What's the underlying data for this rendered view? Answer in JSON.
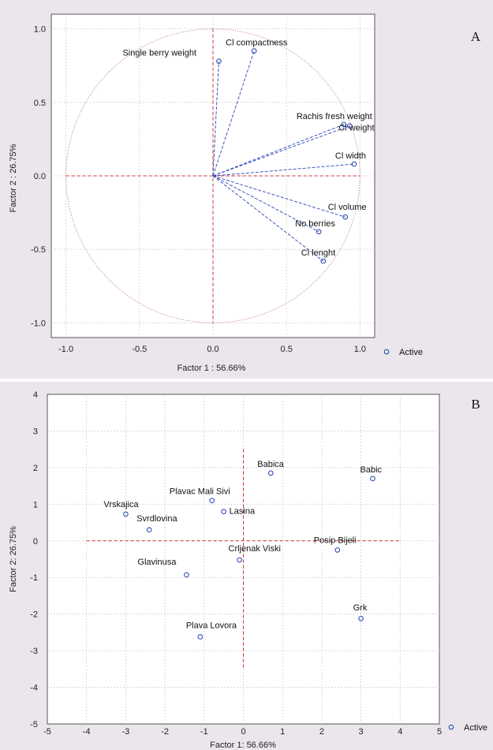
{
  "chart_data": [
    {
      "type": "scatter",
      "panel_label": "A",
      "xlabel": "Factor 1 : 56.66%",
      "ylabel": "Factor 2 : 26.75%",
      "xlim": [
        -1.1,
        1.1
      ],
      "ylim": [
        -1.1,
        1.1
      ],
      "xticks": [
        -1.0,
        -0.5,
        0.0,
        0.5,
        1.0
      ],
      "yticks": [
        -1.0,
        -0.5,
        0.0,
        0.5,
        1.0
      ],
      "xtick_labels": [
        "-1.0",
        "-0.5",
        "0.0",
        "0.5",
        "1.0"
      ],
      "ytick_labels": [
        "-1.0",
        "-0.5",
        "0.0",
        "0.5",
        "1.0"
      ],
      "grid": true,
      "unit_circle": true,
      "legend": {
        "label": "Active",
        "placement": "bottom-right"
      },
      "points": [
        {
          "label": "Cl compactness",
          "x": 0.28,
          "y": 0.85
        },
        {
          "label": "Single berry weight",
          "x": 0.04,
          "y": 0.78
        },
        {
          "label": "Rachis fresh weight",
          "x": 0.89,
          "y": 0.35
        },
        {
          "label": "Cl weight",
          "x": 0.93,
          "y": 0.34
        },
        {
          "label": "Cl width",
          "x": 0.96,
          "y": 0.08
        },
        {
          "label": "Cl volume",
          "x": 0.9,
          "y": -0.28
        },
        {
          "label": "No berries",
          "x": 0.72,
          "y": -0.38
        },
        {
          "label": "Cl lenght",
          "x": 0.75,
          "y": -0.58
        }
      ]
    },
    {
      "type": "scatter",
      "panel_label": "B",
      "xlabel": "Factor 1: 56.66%",
      "ylabel": "Factor 2: 26.75%",
      "xlim": [
        -5,
        5
      ],
      "ylim": [
        -5,
        4
      ],
      "xticks": [
        -5,
        -4,
        -3,
        -2,
        -1,
        0,
        1,
        2,
        3,
        4,
        5
      ],
      "yticks": [
        -5,
        -4,
        -3,
        -2,
        -1,
        0,
        1,
        2,
        3,
        4
      ],
      "xtick_labels": [
        "-5",
        "-4",
        "-3",
        "-2",
        "-1",
        "0",
        "1",
        "2",
        "3",
        "4",
        "5"
      ],
      "ytick_labels": [
        "-5",
        "-4",
        "-3",
        "-2",
        "-1",
        "0",
        "1",
        "2",
        "3",
        "4"
      ],
      "grid": true,
      "legend": {
        "label": "Active",
        "placement": "bottom-right"
      },
      "points": [
        {
          "label": "Babica",
          "x": 0.7,
          "y": 1.85
        },
        {
          "label": "Babic",
          "x": 3.3,
          "y": 1.7
        },
        {
          "label": "Plavac Mali Sivi",
          "x": -0.8,
          "y": 1.1
        },
        {
          "label": "Lasina",
          "x": -0.5,
          "y": 0.8
        },
        {
          "label": "Vrskajica",
          "x": -3.0,
          "y": 0.73
        },
        {
          "label": "Svrdlovina",
          "x": -2.4,
          "y": 0.3
        },
        {
          "label": "Posip Bijeli",
          "x": 2.4,
          "y": -0.25
        },
        {
          "label": "Crljenak Viski",
          "x": -0.1,
          "y": -0.52
        },
        {
          "label": "Glavinusa",
          "x": -1.45,
          "y": -0.93
        },
        {
          "label": "Grk",
          "x": 3.0,
          "y": -2.12
        },
        {
          "label": "Plava Lovora",
          "x": -1.1,
          "y": -2.62
        }
      ]
    }
  ]
}
